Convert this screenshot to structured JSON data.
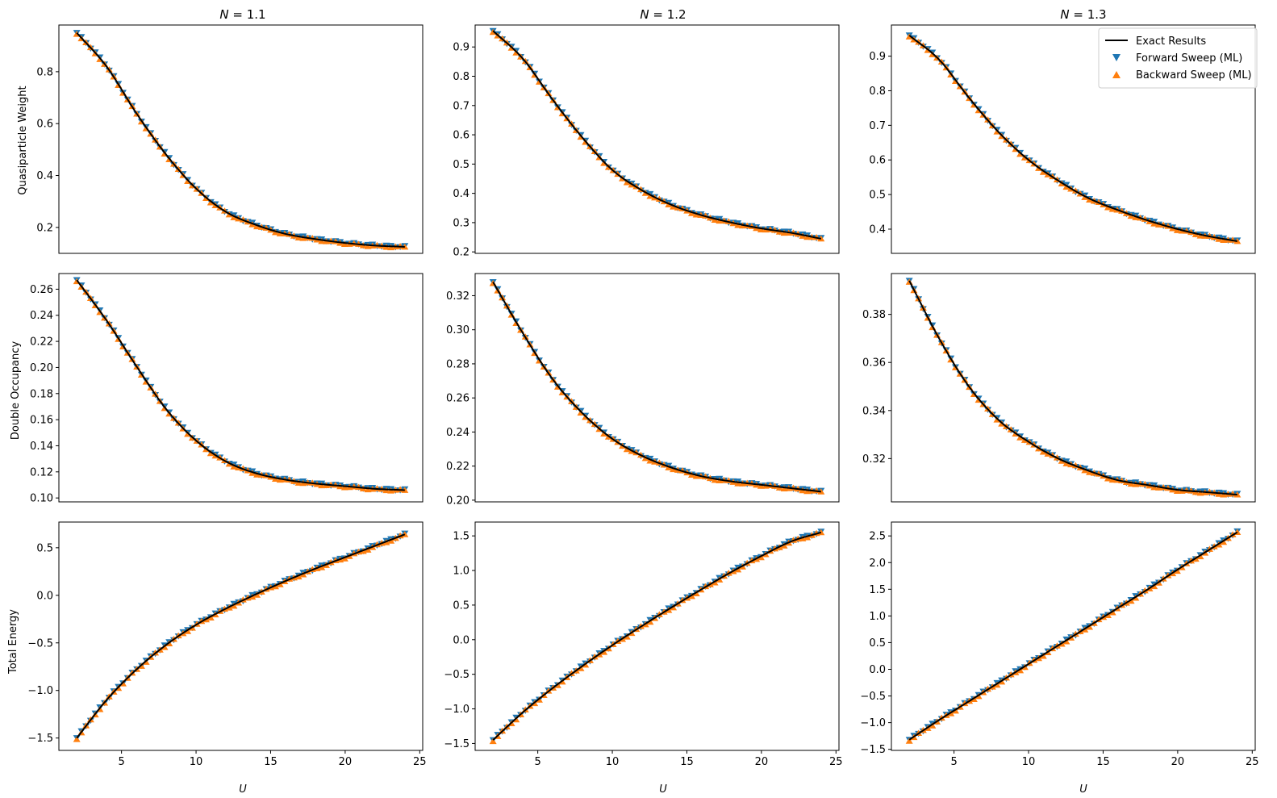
{
  "colors": {
    "exact": "#000000",
    "forward": "#1f77b4",
    "backward": "#ff7f0e"
  },
  "col_titles": [
    {
      "prefix": "N",
      "rest": " = 1.1"
    },
    {
      "prefix": "N",
      "rest": " = 1.2"
    },
    {
      "prefix": "N",
      "rest": " = 1.3"
    }
  ],
  "row_labels": [
    "Quasiparticle Weight",
    "Double Occupancy",
    "Total Energy"
  ],
  "x_label": "U",
  "legend": {
    "placement": "top-right of N = 1.3 top panel",
    "entries": [
      {
        "label": "Exact Results",
        "marker": "line",
        "color": "#000000"
      },
      {
        "label": "Forward Sweep (ML)",
        "marker": "triangle-down",
        "color": "#1f77b4"
      },
      {
        "label": "Backward Sweep (ML)",
        "marker": "triangle-up",
        "color": "#ff7f0e"
      }
    ]
  },
  "chart_data": [
    {
      "type": "line",
      "row": 0,
      "col": 0,
      "title": "N = 1.1",
      "ylabel": "Quasiparticle Weight",
      "xlabel": "",
      "xlim": [
        0.8,
        25.2
      ],
      "ylim": [
        0.1,
        0.98
      ],
      "x_ticks": [],
      "y_ticks": [
        "0.2",
        "0.4",
        "0.6",
        "0.8"
      ],
      "curve": {
        "x": [
          2,
          4,
          6,
          8,
          10,
          12,
          14,
          16,
          18,
          20,
          22,
          24
        ],
        "y": [
          0.95,
          0.82,
          0.64,
          0.48,
          0.35,
          0.26,
          0.21,
          0.175,
          0.155,
          0.14,
          0.13,
          0.125
        ]
      },
      "series": [
        {
          "name": "Exact Results"
        },
        {
          "name": "Forward Sweep (ML)"
        },
        {
          "name": "Backward Sweep (ML)"
        }
      ]
    },
    {
      "type": "line",
      "row": 0,
      "col": 1,
      "title": "N = 1.2",
      "ylabel": "",
      "xlabel": "",
      "xlim": [
        0.8,
        25.2
      ],
      "ylim": [
        0.195,
        0.975
      ],
      "x_ticks": [],
      "y_ticks": [
        "0.2",
        "0.3",
        "0.4",
        "0.5",
        "0.6",
        "0.7",
        "0.8",
        "0.9"
      ],
      "curve": {
        "x": [
          2,
          4,
          6,
          8,
          10,
          12,
          14,
          16,
          18,
          20,
          22,
          24
        ],
        "y": [
          0.955,
          0.86,
          0.72,
          0.59,
          0.48,
          0.41,
          0.36,
          0.325,
          0.3,
          0.28,
          0.265,
          0.245
        ]
      },
      "series": [
        {
          "name": "Exact Results"
        },
        {
          "name": "Forward Sweep (ML)"
        },
        {
          "name": "Backward Sweep (ML)"
        }
      ]
    },
    {
      "type": "line",
      "row": 0,
      "col": 2,
      "title": "N = 1.3",
      "ylabel": "",
      "xlabel": "",
      "xlim": [
        0.8,
        25.2
      ],
      "ylim": [
        0.33,
        0.99
      ],
      "x_ticks": [],
      "y_ticks": [
        "0.4",
        "0.5",
        "0.6",
        "0.7",
        "0.8",
        "0.9"
      ],
      "curve": {
        "x": [
          2,
          4,
          6,
          8,
          10,
          12,
          14,
          16,
          18,
          20,
          22,
          24
        ],
        "y": [
          0.96,
          0.89,
          0.78,
          0.68,
          0.6,
          0.54,
          0.49,
          0.455,
          0.425,
          0.4,
          0.38,
          0.365
        ]
      },
      "series": [
        {
          "name": "Exact Results"
        },
        {
          "name": "Forward Sweep (ML)"
        },
        {
          "name": "Backward Sweep (ML)"
        }
      ]
    },
    {
      "type": "line",
      "row": 1,
      "col": 0,
      "title": "",
      "ylabel": "Double Occupancy",
      "xlabel": "",
      "xlim": [
        0.8,
        25.2
      ],
      "ylim": [
        0.097,
        0.272
      ],
      "x_ticks": [],
      "y_ticks": [
        "0.10",
        "0.12",
        "0.14",
        "0.16",
        "0.18",
        "0.20",
        "0.22",
        "0.24",
        "0.26"
      ],
      "curve": {
        "x": [
          2,
          4,
          6,
          8,
          10,
          12,
          14,
          16,
          18,
          20,
          22,
          24
        ],
        "y": [
          0.267,
          0.236,
          0.201,
          0.168,
          0.144,
          0.128,
          0.119,
          0.114,
          0.111,
          0.109,
          0.107,
          0.106
        ]
      },
      "series": [
        {
          "name": "Exact Results"
        },
        {
          "name": "Forward Sweep (ML)"
        },
        {
          "name": "Backward Sweep (ML)"
        }
      ]
    },
    {
      "type": "line",
      "row": 1,
      "col": 1,
      "title": "",
      "ylabel": "",
      "xlabel": "",
      "xlim": [
        0.8,
        25.2
      ],
      "ylim": [
        0.199,
        0.333
      ],
      "x_ticks": [],
      "y_ticks": [
        "0.20",
        "0.22",
        "0.24",
        "0.26",
        "0.28",
        "0.30",
        "0.32"
      ],
      "curve": {
        "x": [
          2,
          4,
          6,
          8,
          10,
          12,
          14,
          16,
          18,
          20,
          22,
          24
        ],
        "y": [
          0.328,
          0.298,
          0.271,
          0.251,
          0.236,
          0.226,
          0.219,
          0.214,
          0.211,
          0.209,
          0.207,
          0.205
        ]
      },
      "series": [
        {
          "name": "Exact Results"
        },
        {
          "name": "Forward Sweep (ML)"
        },
        {
          "name": "Backward Sweep (ML)"
        }
      ]
    },
    {
      "type": "line",
      "row": 1,
      "col": 2,
      "title": "",
      "ylabel": "",
      "xlabel": "",
      "xlim": [
        0.8,
        25.2
      ],
      "ylim": [
        0.302,
        0.397
      ],
      "x_ticks": [],
      "y_ticks": [
        "0.32",
        "0.34",
        "0.36",
        "0.38"
      ],
      "curve": {
        "x": [
          2,
          4,
          6,
          8,
          10,
          12,
          14,
          16,
          18,
          20,
          22,
          24
        ],
        "y": [
          0.394,
          0.37,
          0.35,
          0.336,
          0.327,
          0.32,
          0.315,
          0.311,
          0.309,
          0.307,
          0.306,
          0.305
        ]
      },
      "series": [
        {
          "name": "Exact Results"
        },
        {
          "name": "Forward Sweep (ML)"
        },
        {
          "name": "Backward Sweep (ML)"
        }
      ]
    },
    {
      "type": "line",
      "row": 2,
      "col": 0,
      "title": "",
      "ylabel": "Total Energy",
      "xlabel": "U",
      "xlim": [
        0.8,
        25.2
      ],
      "ylim": [
        -1.63,
        0.77
      ],
      "x_ticks": [
        "5",
        "10",
        "15",
        "20",
        "25"
      ],
      "y_ticks": [
        "−1.5",
        "−1.0",
        "−0.5",
        "0.0",
        "0.5"
      ],
      "curve": {
        "x": [
          2,
          4,
          6,
          8,
          10,
          12,
          14,
          16,
          18,
          20,
          22,
          24
        ],
        "y": [
          -1.5,
          -1.1,
          -0.78,
          -0.52,
          -0.31,
          -0.14,
          0.01,
          0.15,
          0.28,
          0.4,
          0.52,
          0.64
        ]
      },
      "series": [
        {
          "name": "Exact Results"
        },
        {
          "name": "Forward Sweep (ML)"
        },
        {
          "name": "Backward Sweep (ML)"
        }
      ]
    },
    {
      "type": "line",
      "row": 2,
      "col": 1,
      "title": "",
      "ylabel": "",
      "xlabel": "U",
      "xlim": [
        0.8,
        25.2
      ],
      "ylim": [
        -1.6,
        1.7
      ],
      "x_ticks": [
        "5",
        "10",
        "15",
        "20",
        "25"
      ],
      "y_ticks": [
        "−1.5",
        "−1.0",
        "−0.5",
        "0.0",
        "0.5",
        "1.0",
        "1.5"
      ],
      "curve": {
        "x": [
          2,
          4,
          6,
          8,
          10,
          12,
          14,
          16,
          18,
          20,
          22,
          24
        ],
        "y": [
          -1.45,
          -1.05,
          -0.7,
          -0.38,
          -0.08,
          0.2,
          0.47,
          0.73,
          0.98,
          1.21,
          1.42,
          1.55
        ]
      },
      "series": [
        {
          "name": "Exact Results"
        },
        {
          "name": "Forward Sweep (ML)"
        },
        {
          "name": "Backward Sweep (ML)"
        }
      ]
    },
    {
      "type": "line",
      "row": 2,
      "col": 2,
      "title": "",
      "ylabel": "",
      "xlabel": "U",
      "xlim": [
        0.8,
        25.2
      ],
      "ylim": [
        -1.52,
        2.76
      ],
      "x_ticks": [
        "5",
        "10",
        "15",
        "20",
        "25"
      ],
      "y_ticks": [
        "−1.5",
        "−1.0",
        "−0.5",
        "0.0",
        "0.5",
        "1.0",
        "1.5",
        "2.0",
        "2.5"
      ],
      "curve": {
        "x": [
          2,
          4,
          6,
          8,
          10,
          12,
          14,
          16,
          18,
          20,
          22,
          24
        ],
        "y": [
          -1.32,
          -0.95,
          -0.6,
          -0.25,
          0.1,
          0.45,
          0.8,
          1.15,
          1.5,
          1.87,
          2.22,
          2.57
        ]
      },
      "series": [
        {
          "name": "Exact Results"
        },
        {
          "name": "Forward Sweep (ML)"
        },
        {
          "name": "Backward Sweep (ML)"
        }
      ]
    }
  ]
}
